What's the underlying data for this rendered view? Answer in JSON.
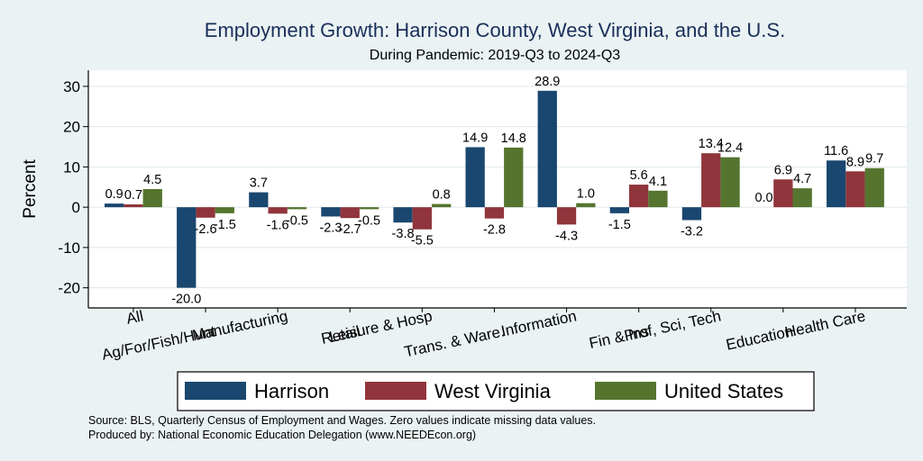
{
  "chart_data": {
    "type": "bar",
    "title": "Employment Growth: Harrison County, West Virginia, and the U.S.",
    "subtitle": "During Pandemic: 2019-Q3 to 2024-Q3",
    "ylabel": "Percent",
    "ylim": [
      -25,
      34
    ],
    "yticks": [
      30,
      20,
      10,
      0,
      -10,
      -20
    ],
    "grid": true,
    "legend_position": "bottom",
    "categories": [
      "All",
      "Ag/For/Fish/Hunt",
      "Manufacturing",
      "Retail",
      "Leisure & Hosp",
      "Trans. & Ware.",
      "Information",
      "Fin & Ins",
      "Prof, Sci, Tech",
      "Education",
      "Health Care"
    ],
    "series": [
      {
        "name": "Harrison",
        "color": "#1a476f",
        "values": [
          0.9,
          -20.0,
          3.7,
          -2.3,
          -3.8,
          14.9,
          28.9,
          -1.5,
          -3.2,
          0.0,
          11.6
        ],
        "labels": [
          "0.9",
          "-20.0",
          "3.7",
          "-2.3",
          "-3.8",
          "14.9",
          "28.9",
          "-1.5",
          "-3.2",
          "0.0",
          "11.6"
        ]
      },
      {
        "name": "West Virginia",
        "color": "#90353b",
        "values": [
          0.7,
          -2.6,
          -1.6,
          -2.7,
          -5.5,
          -2.8,
          -4.3,
          5.6,
          13.4,
          6.9,
          8.9
        ],
        "labels": [
          "0.7",
          "-2.6",
          "-1.6",
          "-2.7",
          "-5.5",
          "-2.8",
          "-4.3",
          "5.6",
          "13.4",
          "6.9",
          "8.9"
        ]
      },
      {
        "name": "United States",
        "color": "#55752f",
        "values": [
          4.5,
          -1.5,
          -0.5,
          -0.5,
          0.8,
          14.8,
          1.0,
          4.1,
          12.4,
          4.7,
          9.7
        ],
        "labels": [
          "4.5",
          "-1.5",
          "-0.5",
          "-0.5",
          "0.8",
          "14.8",
          "1.0",
          "4.1",
          "12.4",
          "4.7",
          "9.7"
        ]
      }
    ],
    "notes": [
      "Source: BLS, Quarterly Census of Employment and Wages. Zero values indicate missing data values.",
      "Produced by: National Economic Education Delegation (www.NEEDEcon.org)"
    ]
  }
}
